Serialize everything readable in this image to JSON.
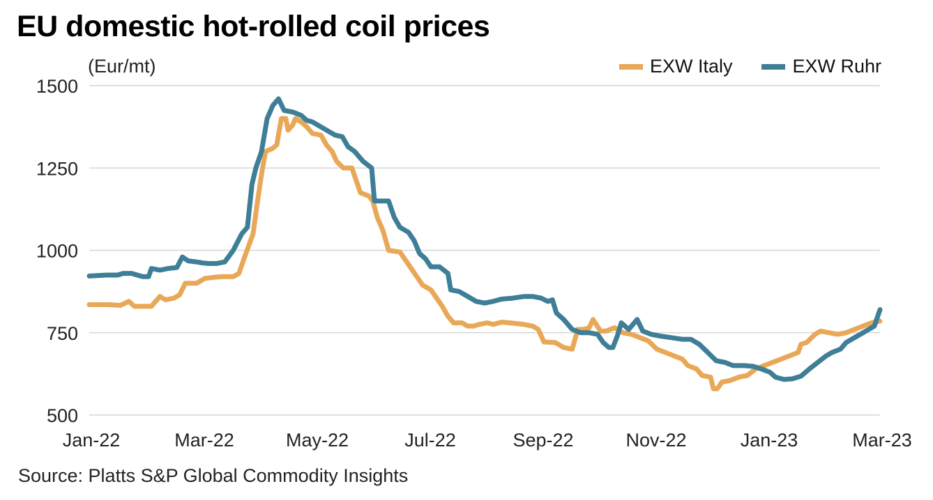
{
  "title": "EU domestic hot-rolled coil prices",
  "unit_label": "(Eur/mt)",
  "source": "Source: Platts S&P Global Commodity Insights",
  "legend": [
    {
      "label": "EXW Italy",
      "color": "#E8A857"
    },
    {
      "label": "EXW Ruhr",
      "color": "#3E7E96"
    }
  ],
  "chart_data": {
    "type": "line",
    "title": "EU domestic hot-rolled coil prices",
    "xlabel": "",
    "ylabel": "(Eur/mt)",
    "ylim": [
      500,
      1500
    ],
    "yticks": [
      500,
      750,
      1000,
      1250,
      1500
    ],
    "xticks": [
      "Jan-22",
      "Mar-22",
      "May-22",
      "Jul-22",
      "Sep-22",
      "Nov-22",
      "Jan-23",
      "Mar-23"
    ],
    "x_range_months": [
      0,
      14
    ],
    "grid": "horizontal",
    "legend_position": "top-right",
    "series": [
      {
        "name": "EXW Italy",
        "color": "#E8A857",
        "points": [
          [
            0.0,
            835
          ],
          [
            0.35,
            835
          ],
          [
            0.55,
            833
          ],
          [
            0.7,
            845
          ],
          [
            0.8,
            830
          ],
          [
            1.0,
            830
          ],
          [
            1.1,
            830
          ],
          [
            1.25,
            860
          ],
          [
            1.35,
            850
          ],
          [
            1.5,
            855
          ],
          [
            1.6,
            865
          ],
          [
            1.7,
            900
          ],
          [
            1.9,
            900
          ],
          [
            2.05,
            915
          ],
          [
            2.2,
            918
          ],
          [
            2.35,
            920
          ],
          [
            2.55,
            920
          ],
          [
            2.65,
            930
          ],
          [
            2.75,
            980
          ],
          [
            2.9,
            1050
          ],
          [
            2.98,
            1150
          ],
          [
            3.05,
            1230
          ],
          [
            3.12,
            1300
          ],
          [
            3.25,
            1310
          ],
          [
            3.32,
            1320
          ],
          [
            3.4,
            1400
          ],
          [
            3.48,
            1400
          ],
          [
            3.52,
            1365
          ],
          [
            3.6,
            1380
          ],
          [
            3.65,
            1400
          ],
          [
            3.75,
            1390
          ],
          [
            3.85,
            1375
          ],
          [
            3.95,
            1355
          ],
          [
            4.1,
            1350
          ],
          [
            4.2,
            1320
          ],
          [
            4.3,
            1300
          ],
          [
            4.38,
            1270
          ],
          [
            4.5,
            1250
          ],
          [
            4.65,
            1250
          ],
          [
            4.75,
            1200
          ],
          [
            4.8,
            1175
          ],
          [
            4.95,
            1165
          ],
          [
            5.02,
            1150
          ],
          [
            5.1,
            1100
          ],
          [
            5.2,
            1060
          ],
          [
            5.3,
            1000
          ],
          [
            5.5,
            995
          ],
          [
            5.6,
            970
          ],
          [
            5.7,
            945
          ],
          [
            5.8,
            920
          ],
          [
            5.9,
            895
          ],
          [
            6.05,
            880
          ],
          [
            6.15,
            855
          ],
          [
            6.25,
            830
          ],
          [
            6.35,
            800
          ],
          [
            6.45,
            780
          ],
          [
            6.6,
            780
          ],
          [
            6.7,
            770
          ],
          [
            6.8,
            770
          ],
          [
            6.9,
            775
          ],
          [
            7.05,
            780
          ],
          [
            7.15,
            775
          ],
          [
            7.3,
            782
          ],
          [
            7.45,
            780
          ],
          [
            7.55,
            778
          ],
          [
            7.7,
            775
          ],
          [
            7.85,
            770
          ],
          [
            7.95,
            760
          ],
          [
            8.05,
            722
          ],
          [
            8.25,
            720
          ],
          [
            8.4,
            705
          ],
          [
            8.55,
            700
          ],
          [
            8.65,
            760
          ],
          [
            8.75,
            760
          ],
          [
            8.85,
            765
          ],
          [
            8.92,
            790
          ],
          [
            9.05,
            755
          ],
          [
            9.15,
            755
          ],
          [
            9.3,
            765
          ],
          [
            9.45,
            750
          ],
          [
            9.6,
            745
          ],
          [
            9.75,
            735
          ],
          [
            9.9,
            725
          ],
          [
            10.05,
            700
          ],
          [
            10.2,
            690
          ],
          [
            10.35,
            680
          ],
          [
            10.5,
            670
          ],
          [
            10.6,
            650
          ],
          [
            10.75,
            640
          ],
          [
            10.85,
            620
          ],
          [
            11.0,
            615
          ],
          [
            11.05,
            580
          ],
          [
            11.12,
            580
          ],
          [
            11.2,
            600
          ],
          [
            11.35,
            605
          ],
          [
            11.5,
            615
          ],
          [
            11.65,
            620
          ],
          [
            11.8,
            640
          ],
          [
            11.95,
            650
          ],
          [
            12.1,
            660
          ],
          [
            12.25,
            670
          ],
          [
            12.4,
            680
          ],
          [
            12.55,
            690
          ],
          [
            12.6,
            715
          ],
          [
            12.7,
            720
          ],
          [
            12.85,
            745
          ],
          [
            12.95,
            755
          ],
          [
            13.1,
            750
          ],
          [
            13.25,
            745
          ],
          [
            13.4,
            750
          ],
          [
            13.55,
            760
          ],
          [
            13.7,
            770
          ],
          [
            13.85,
            780
          ],
          [
            14.0,
            785
          ]
        ]
      },
      {
        "name": "EXW Ruhr",
        "color": "#3E7E96",
        "points": [
          [
            0.0,
            922
          ],
          [
            0.3,
            925
          ],
          [
            0.5,
            925
          ],
          [
            0.6,
            930
          ],
          [
            0.75,
            930
          ],
          [
            0.85,
            925
          ],
          [
            0.95,
            920
          ],
          [
            1.05,
            920
          ],
          [
            1.1,
            945
          ],
          [
            1.25,
            940
          ],
          [
            1.4,
            945
          ],
          [
            1.55,
            948
          ],
          [
            1.65,
            980
          ],
          [
            1.75,
            968
          ],
          [
            1.9,
            965
          ],
          [
            2.0,
            962
          ],
          [
            2.1,
            960
          ],
          [
            2.25,
            960
          ],
          [
            2.4,
            965
          ],
          [
            2.55,
            1000
          ],
          [
            2.7,
            1050
          ],
          [
            2.8,
            1070
          ],
          [
            2.88,
            1200
          ],
          [
            2.95,
            1250
          ],
          [
            3.05,
            1300
          ],
          [
            3.15,
            1400
          ],
          [
            3.25,
            1440
          ],
          [
            3.35,
            1460
          ],
          [
            3.45,
            1425
          ],
          [
            3.6,
            1420
          ],
          [
            3.75,
            1410
          ],
          [
            3.85,
            1395
          ],
          [
            3.95,
            1390
          ],
          [
            4.05,
            1380
          ],
          [
            4.2,
            1365
          ],
          [
            4.35,
            1350
          ],
          [
            4.48,
            1345
          ],
          [
            4.58,
            1315
          ],
          [
            4.7,
            1300
          ],
          [
            4.85,
            1270
          ],
          [
            5.0,
            1250
          ],
          [
            5.05,
            1150
          ],
          [
            5.2,
            1150
          ],
          [
            5.3,
            1150
          ],
          [
            5.4,
            1100
          ],
          [
            5.5,
            1070
          ],
          [
            5.65,
            1055
          ],
          [
            5.75,
            1030
          ],
          [
            5.85,
            990
          ],
          [
            5.95,
            975
          ],
          [
            6.05,
            950
          ],
          [
            6.2,
            950
          ],
          [
            6.35,
            930
          ],
          [
            6.4,
            880
          ],
          [
            6.55,
            875
          ],
          [
            6.7,
            860
          ],
          [
            6.85,
            845
          ],
          [
            7.0,
            840
          ],
          [
            7.15,
            845
          ],
          [
            7.3,
            852
          ],
          [
            7.5,
            855
          ],
          [
            7.7,
            860
          ],
          [
            7.85,
            860
          ],
          [
            8.0,
            855
          ],
          [
            8.12,
            845
          ],
          [
            8.2,
            850
          ],
          [
            8.27,
            810
          ],
          [
            8.4,
            790
          ],
          [
            8.55,
            760
          ],
          [
            8.7,
            750
          ],
          [
            8.85,
            750
          ],
          [
            9.0,
            745
          ],
          [
            9.1,
            720
          ],
          [
            9.2,
            705
          ],
          [
            9.27,
            705
          ],
          [
            9.35,
            740
          ],
          [
            9.42,
            780
          ],
          [
            9.55,
            760
          ],
          [
            9.7,
            790
          ],
          [
            9.8,
            755
          ],
          [
            9.95,
            745
          ],
          [
            10.1,
            740
          ],
          [
            10.3,
            735
          ],
          [
            10.5,
            730
          ],
          [
            10.65,
            730
          ],
          [
            10.8,
            715
          ],
          [
            10.95,
            690
          ],
          [
            11.1,
            665
          ],
          [
            11.25,
            660
          ],
          [
            11.4,
            650
          ],
          [
            11.6,
            650
          ],
          [
            11.75,
            648
          ],
          [
            11.9,
            640
          ],
          [
            12.05,
            630
          ],
          [
            12.15,
            615
          ],
          [
            12.3,
            608
          ],
          [
            12.45,
            610
          ],
          [
            12.6,
            618
          ],
          [
            12.75,
            640
          ],
          [
            12.9,
            660
          ],
          [
            13.05,
            680
          ],
          [
            13.15,
            690
          ],
          [
            13.3,
            700
          ],
          [
            13.4,
            720
          ],
          [
            13.55,
            735
          ],
          [
            13.7,
            750
          ],
          [
            13.8,
            760
          ],
          [
            13.9,
            770
          ],
          [
            14.0,
            820
          ]
        ]
      }
    ]
  }
}
